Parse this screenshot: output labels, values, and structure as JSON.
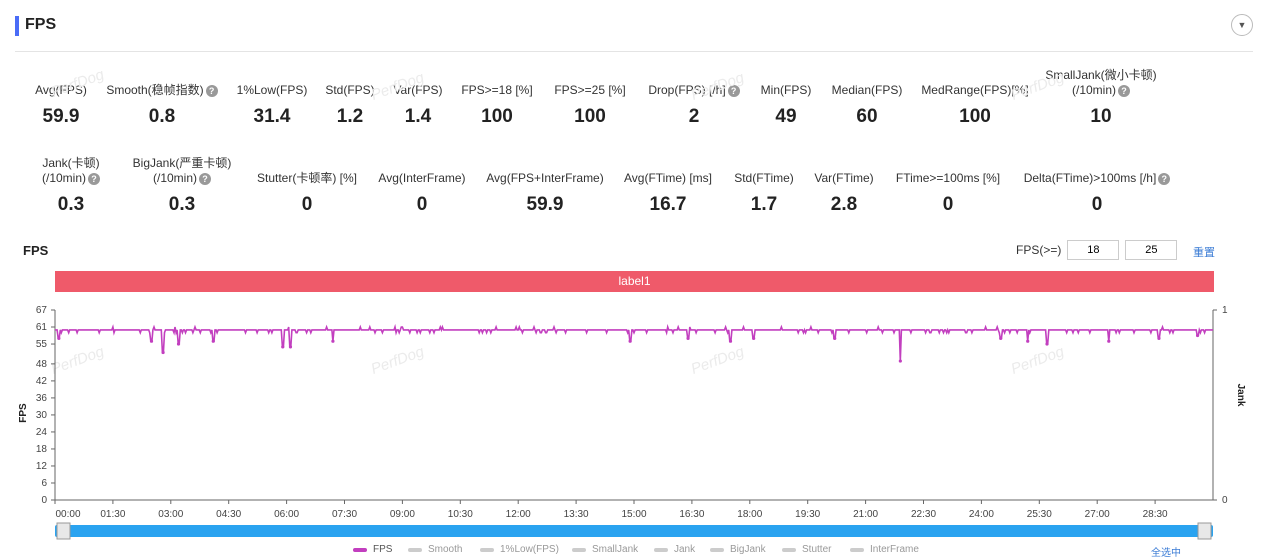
{
  "header": {
    "title": "FPS",
    "collapse_icon": "chevron-down-icon"
  },
  "metrics_row1": [
    {
      "label": "Avg(FPS)",
      "value": "59.9",
      "help": false
    },
    {
      "label": "Smooth(稳帧指数)",
      "value": "0.8",
      "help": true
    },
    {
      "label": "1%Low(FPS)",
      "value": "31.4",
      "help": false
    },
    {
      "label": "Std(FPS)",
      "value": "1.2",
      "help": false
    },
    {
      "label": "Var(FPS)",
      "value": "1.4",
      "help": false
    },
    {
      "label": "FPS>=18 [%]",
      "value": "100",
      "help": false
    },
    {
      "label": "FPS>=25 [%]",
      "value": "100",
      "help": false
    },
    {
      "label": "Drop(FPS) [/h]",
      "value": "2",
      "help": true
    },
    {
      "label": "Min(FPS)",
      "value": "49",
      "help": false
    },
    {
      "label": "Median(FPS)",
      "value": "60",
      "help": false
    },
    {
      "label": "MedRange(FPS)[%]",
      "value": "100",
      "help": false
    },
    {
      "label": "SmallJank(微小卡顿)",
      "label2": "(/10min)",
      "value": "10",
      "help": true
    }
  ],
  "metrics_row2": [
    {
      "label": "Jank(卡顿)",
      "label2": "(/10min)",
      "value": "0.3",
      "help": true
    },
    {
      "label": "BigJank(严重卡顿)",
      "label2": "(/10min)",
      "value": "0.3",
      "help": true
    },
    {
      "label": "Stutter(卡顿率) [%]",
      "value": "0",
      "help": false
    },
    {
      "label": "Avg(InterFrame)",
      "value": "0",
      "help": false
    },
    {
      "label": "Avg(FPS+InterFrame)",
      "value": "59.9",
      "help": false
    },
    {
      "label": "Avg(FTime) [ms]",
      "value": "16.7",
      "help": false
    },
    {
      "label": "Std(FTime)",
      "value": "1.7",
      "help": false
    },
    {
      "label": "Var(FTime)",
      "value": "2.8",
      "help": false
    },
    {
      "label": "FTime>=100ms [%]",
      "value": "0",
      "help": false
    },
    {
      "label": "Delta(FTime)>100ms [/h]",
      "value": "0",
      "help": true
    }
  ],
  "watermark": "PerfDog",
  "chart": {
    "title": "FPS",
    "fps_threshold_label": "FPS(>=)",
    "threshold1": "18",
    "threshold2": "25",
    "reset_label": "重置",
    "band_label": "label1",
    "band_color": "#ef5a6a",
    "line_color": "#c23fbf",
    "slider_color": "#2aa3f0",
    "select_all_label": "全选中"
  },
  "chart_data": {
    "type": "line",
    "ylabel": "FPS",
    "y2label": "Jank",
    "ylim": [
      0,
      67
    ],
    "yticks": [
      0,
      6,
      12,
      18,
      24,
      30,
      36,
      42,
      48,
      55,
      61,
      67
    ],
    "y2ticks": [
      0,
      1
    ],
    "xticks": [
      "00:00",
      "01:30",
      "03:00",
      "04:30",
      "06:00",
      "07:30",
      "09:00",
      "10:30",
      "12:00",
      "13:30",
      "15:00",
      "16:30",
      "18:00",
      "19:30",
      "21:00",
      "22:30",
      "24:00",
      "25:30",
      "27:00",
      "28:30"
    ],
    "xlim_minutes": [
      0,
      30
    ],
    "series": [
      {
        "name": "FPS",
        "baseline": 60,
        "dips": [
          [
            0.1,
            57
          ],
          [
            2.5,
            56
          ],
          [
            2.8,
            52
          ],
          [
            3.2,
            55
          ],
          [
            4.1,
            56
          ],
          [
            5.9,
            54
          ],
          [
            6.1,
            54
          ],
          [
            7.2,
            56
          ],
          [
            14.9,
            56
          ],
          [
            16.4,
            57
          ],
          [
            17.5,
            56
          ],
          [
            18.1,
            57
          ],
          [
            20.2,
            57
          ],
          [
            21.9,
            49
          ],
          [
            24.5,
            57
          ],
          [
            25.2,
            56
          ],
          [
            25.7,
            55
          ],
          [
            27.3,
            56
          ],
          [
            28.6,
            57
          ],
          [
            29.6,
            58
          ]
        ]
      }
    ],
    "legend": [
      "FPS",
      "Smooth",
      "1%Low(FPS)",
      "SmallJank",
      "Jank",
      "BigJank",
      "Stutter",
      "InterFrame"
    ],
    "grid": false
  }
}
